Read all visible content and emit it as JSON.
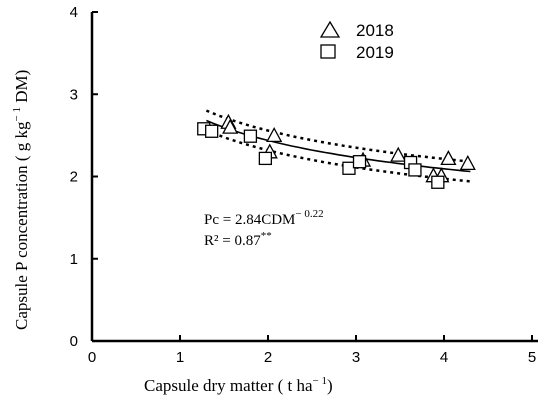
{
  "chart_data": {
    "type": "scatter",
    "xlabel": "Capsule dry matter ( t ha",
    "xlabel_sup": "− 1",
    "xlabel_end": ")",
    "ylabel": "Capsule P concentration ( g kg",
    "ylabel_sup": "− 1",
    "ylabel_end": " DM)",
    "xlim": [
      0,
      5
    ],
    "ylim": [
      0,
      4
    ],
    "x_ticks": [
      "0",
      "1",
      "2",
      "3",
      "4",
      "5"
    ],
    "y_ticks": [
      "0",
      "1",
      "2",
      "3",
      "4"
    ],
    "grid": false,
    "legend_position": "top-right",
    "series": [
      {
        "name": "2018",
        "marker": "triangle",
        "points": [
          {
            "x": 1.55,
            "y": 2.66
          },
          {
            "x": 1.57,
            "y": 2.6
          },
          {
            "x": 2.02,
            "y": 2.3
          },
          {
            "x": 2.07,
            "y": 2.5
          },
          {
            "x": 3.08,
            "y": 2.2
          },
          {
            "x": 3.48,
            "y": 2.26
          },
          {
            "x": 3.88,
            "y": 2.01
          },
          {
            "x": 3.97,
            "y": 2.01
          },
          {
            "x": 4.05,
            "y": 2.22
          },
          {
            "x": 4.27,
            "y": 2.16
          }
        ]
      },
      {
        "name": "2019",
        "marker": "square",
        "points": [
          {
            "x": 1.27,
            "y": 2.58
          },
          {
            "x": 1.36,
            "y": 2.55
          },
          {
            "x": 1.8,
            "y": 2.49
          },
          {
            "x": 1.97,
            "y": 2.22
          },
          {
            "x": 2.92,
            "y": 2.1
          },
          {
            "x": 3.04,
            "y": 2.18
          },
          {
            "x": 3.62,
            "y": 2.17
          },
          {
            "x": 3.67,
            "y": 2.08
          },
          {
            "x": 3.93,
            "y": 1.93
          }
        ]
      }
    ],
    "fit": {
      "coefficient": 2.84,
      "exponent": -0.22,
      "x_range": [
        1.3,
        4.3
      ],
      "ci_offset": 0.12
    },
    "annotation": {
      "equation_main": "Pc = 2.84CDM",
      "equation_exp": "− 0.22",
      "r2_main": "R² = 0.87",
      "r2_sup": "**"
    }
  }
}
